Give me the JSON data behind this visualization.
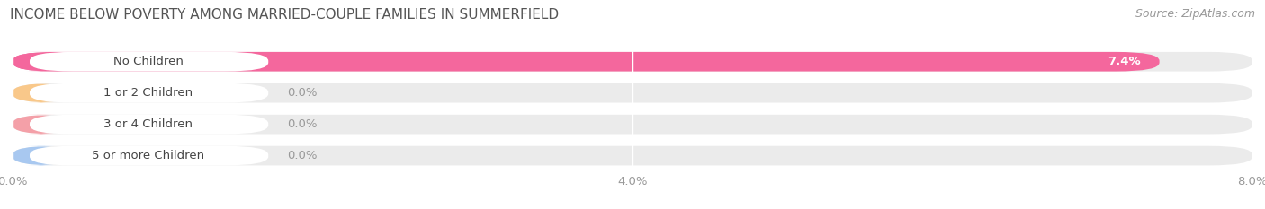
{
  "title": "INCOME BELOW POVERTY AMONG MARRIED-COUPLE FAMILIES IN SUMMERFIELD",
  "source": "Source: ZipAtlas.com",
  "categories": [
    "No Children",
    "1 or 2 Children",
    "3 or 4 Children",
    "5 or more Children"
  ],
  "values": [
    7.4,
    0.0,
    0.0,
    0.0
  ],
  "bar_colors": [
    "#f4679d",
    "#f9c88a",
    "#f4a0a8",
    "#a8c8f0"
  ],
  "xlim": [
    0,
    8.0
  ],
  "xticks": [
    0.0,
    4.0,
    8.0
  ],
  "xtick_labels": [
    "0.0%",
    "4.0%",
    "8.0%"
  ],
  "bg_color": "#ffffff",
  "bar_bg_color": "#ebebeb",
  "title_fontsize": 11,
  "tick_fontsize": 9.5,
  "label_fontsize": 9.5,
  "value_fontsize": 9.5,
  "source_fontsize": 9
}
